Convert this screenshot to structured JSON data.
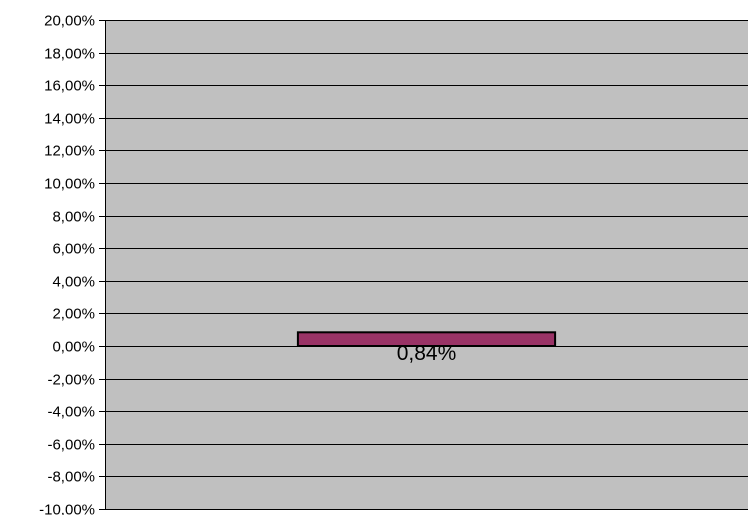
{
  "chart_data": {
    "type": "bar",
    "categories": [
      ""
    ],
    "values": [
      0.84
    ],
    "data_labels": [
      "0,84%"
    ],
    "ylim": [
      -10,
      20
    ],
    "yticks": [
      20,
      18,
      16,
      14,
      12,
      10,
      8,
      6,
      4,
      2,
      0,
      -2,
      -4,
      -6,
      -8,
      -10
    ],
    "ytick_labels": [
      "20,00%",
      "18,00%",
      "16,00%",
      "14,00%",
      "12,00%",
      "10,00%",
      "8,00%",
      "6,00%",
      "4,00%",
      "2,00%",
      "0,00%",
      "-2,00%",
      "-4,00%",
      "-6,00%",
      "-8,00%",
      "-10,00%"
    ],
    "grid": true,
    "legend": false,
    "colors": {
      "plot_background": "#c0c0c0",
      "bar_fill": "#993366",
      "bar_edge": "#000000",
      "grid": "#000000"
    }
  }
}
